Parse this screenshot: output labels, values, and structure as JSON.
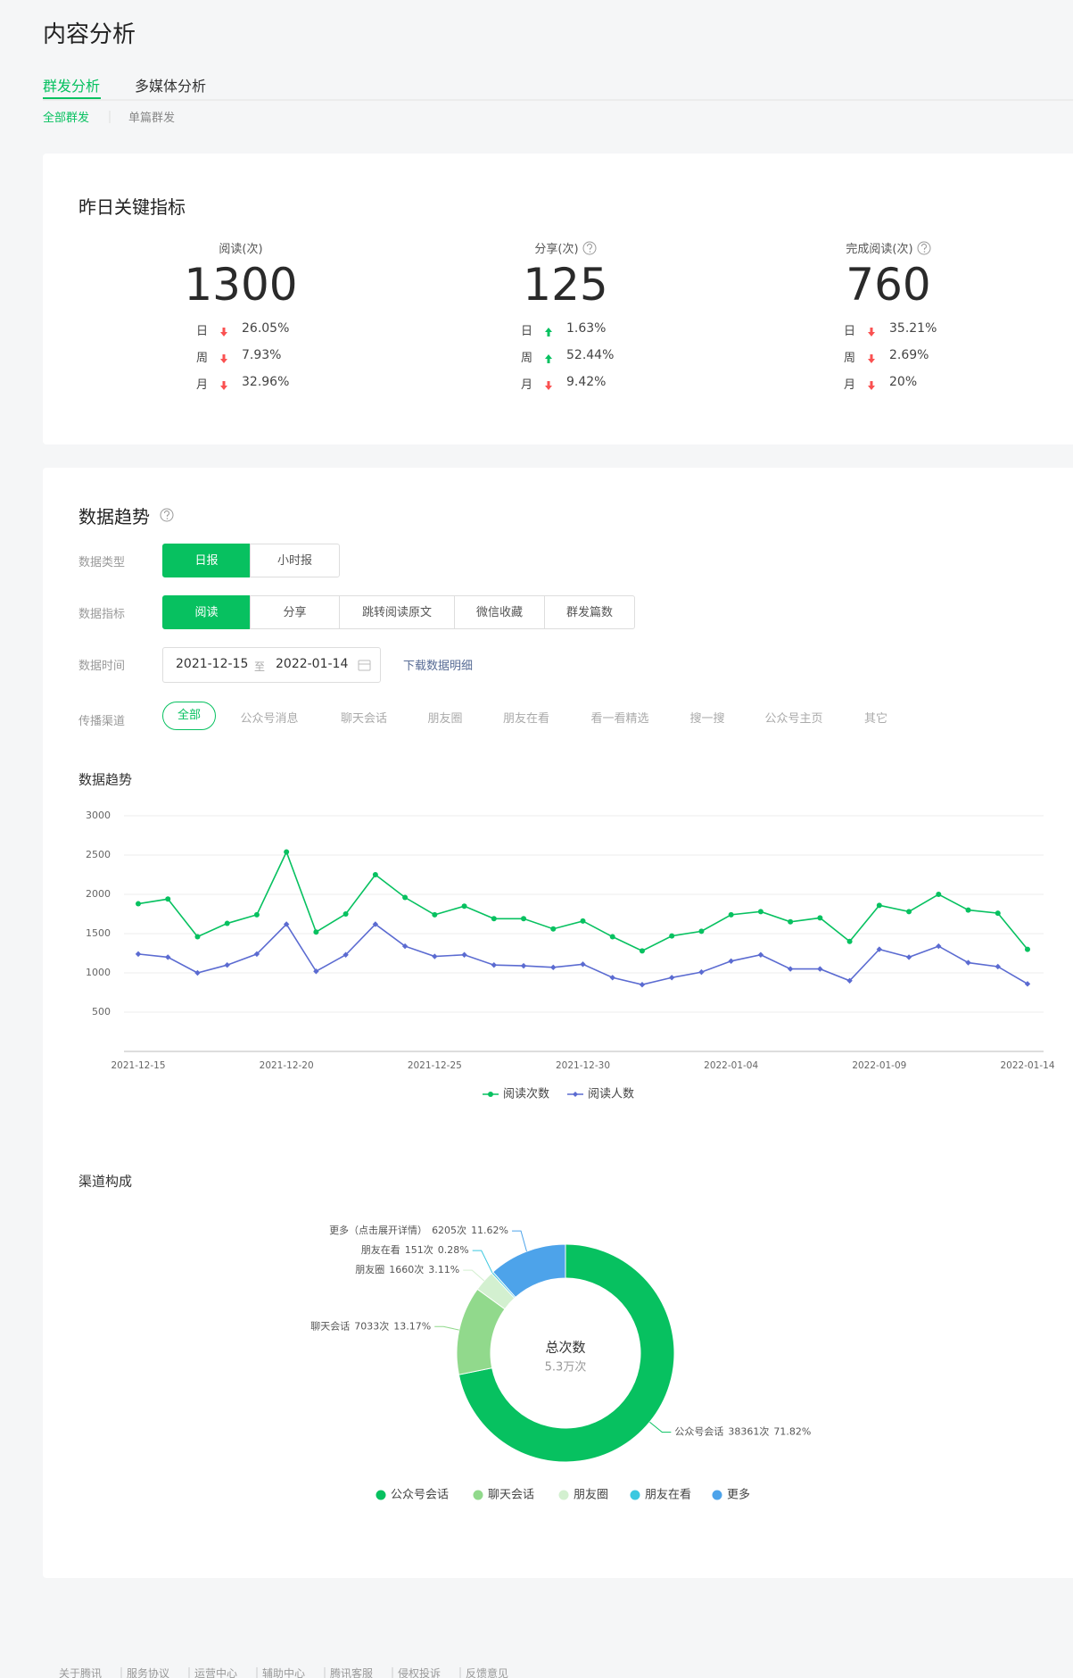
{
  "header": {
    "title": "内容分析",
    "tabs": [
      "群发分析",
      "多媒体分析"
    ],
    "active_tab": 0,
    "subtabs": [
      "全部群发",
      "单篇群发"
    ],
    "active_subtab": 0
  },
  "key_metrics": {
    "title": "昨日关键指标",
    "items": [
      {
        "label": "阅读(次)",
        "help": false,
        "value": 1300,
        "changes": [
          {
            "period": "日",
            "direction": "down",
            "value": "26.05%"
          },
          {
            "period": "周",
            "direction": "down",
            "value": "7.93%"
          },
          {
            "period": "月",
            "direction": "down",
            "value": "32.96%"
          }
        ]
      },
      {
        "label": "分享(次)",
        "help": true,
        "value": 125,
        "changes": [
          {
            "period": "日",
            "direction": "up",
            "value": "1.63%"
          },
          {
            "period": "周",
            "direction": "up",
            "value": "52.44%"
          },
          {
            "period": "月",
            "direction": "down",
            "value": "9.42%"
          }
        ]
      },
      {
        "label": "完成阅读(次)",
        "help": true,
        "value": 760,
        "changes": [
          {
            "period": "日",
            "direction": "down",
            "value": "35.21%"
          },
          {
            "period": "周",
            "direction": "down",
            "value": "2.69%"
          },
          {
            "period": "月",
            "direction": "down",
            "value": "20%"
          }
        ]
      }
    ]
  },
  "trend": {
    "title": "数据趋势",
    "filters": {
      "type": {
        "label": "数据类型",
        "options": [
          "日报",
          "小时报"
        ],
        "selected": 0
      },
      "metric": {
        "label": "数据指标",
        "options": [
          "阅读",
          "分享",
          "跳转阅读原文",
          "微信收藏",
          "群发篇数"
        ],
        "selected": 0
      },
      "time": {
        "label": "数据时间",
        "start": "2021-12-15",
        "separator": "至",
        "end": "2022-01-14",
        "download": "下载数据明细"
      },
      "channel": {
        "label": "传播渠道",
        "options": [
          "全部",
          "公众号消息",
          "聊天会话",
          "朋友圈",
          "朋友在看",
          "看一看精选",
          "搜一搜",
          "公众号主页",
          "其它"
        ],
        "selected": 0
      }
    }
  },
  "chart_data": [
    {
      "type": "line",
      "title": "数据趋势",
      "categories": [
        "2021-12-15",
        null,
        null,
        null,
        null,
        "2021-12-20",
        null,
        null,
        null,
        null,
        "2021-12-25",
        null,
        null,
        null,
        null,
        "2021-12-30",
        null,
        null,
        null,
        null,
        "2022-01-04",
        null,
        null,
        null,
        null,
        "2022-01-09",
        null,
        null,
        null,
        null,
        "2022-01-14"
      ],
      "series": [
        {
          "name": "阅读次数",
          "color": "#07c160",
          "marker": "circle",
          "values": [
            1880,
            1940,
            1460,
            1630,
            1740,
            2540,
            1520,
            1750,
            2250,
            1960,
            1740,
            1850,
            1690,
            1690,
            1560,
            1660,
            1460,
            1280,
            1470,
            1530,
            1740,
            1780,
            1650,
            1700,
            1400,
            1860,
            1780,
            2000,
            1800,
            1760,
            1300
          ]
        },
        {
          "name": "阅读人数",
          "color": "#5b6bd1",
          "marker": "diamond",
          "values": [
            1240,
            1200,
            1000,
            1100,
            1240,
            1620,
            1020,
            1230,
            1620,
            1340,
            1210,
            1230,
            1100,
            1090,
            1070,
            1110,
            940,
            850,
            940,
            1010,
            1150,
            1230,
            1050,
            1050,
            900,
            1300,
            1200,
            1340,
            1130,
            1080,
            860
          ]
        }
      ],
      "ylim": [
        0,
        3000
      ],
      "yticks": [
        500,
        1000,
        1500,
        2000,
        2500,
        3000
      ],
      "grid": true
    },
    {
      "type": "pie",
      "title": "渠道构成",
      "donut": true,
      "center_title": "总次数",
      "center_label": "5.3万次",
      "categories": [
        "公众号会话",
        "聊天会话",
        "朋友圈",
        "朋友在看",
        "更多"
      ],
      "callout_names": [
        "公众号会话",
        "聊天会话",
        "朋友圈",
        "朋友在看",
        "更多（点击展开详情）"
      ],
      "values": [
        38361,
        7033,
        1660,
        151,
        6205
      ],
      "value_labels": [
        "38361次",
        "7033次",
        "1660次",
        "151次",
        "6205次"
      ],
      "percents": [
        71.82,
        13.17,
        3.11,
        0.28,
        11.62
      ],
      "percent_labels": [
        "71.82%",
        "13.17%",
        "3.11%",
        "0.28%",
        "11.62%"
      ],
      "colors": [
        "#07c160",
        "#91d98c",
        "#d3f0d0",
        "#3cc8e0",
        "#4da3ea"
      ]
    }
  ],
  "footer": {
    "links": [
      "关于腾讯",
      "服务协议",
      "运营中心",
      "辅助中心",
      "腾讯客服",
      "侵权投诉",
      "反馈意见"
    ]
  }
}
